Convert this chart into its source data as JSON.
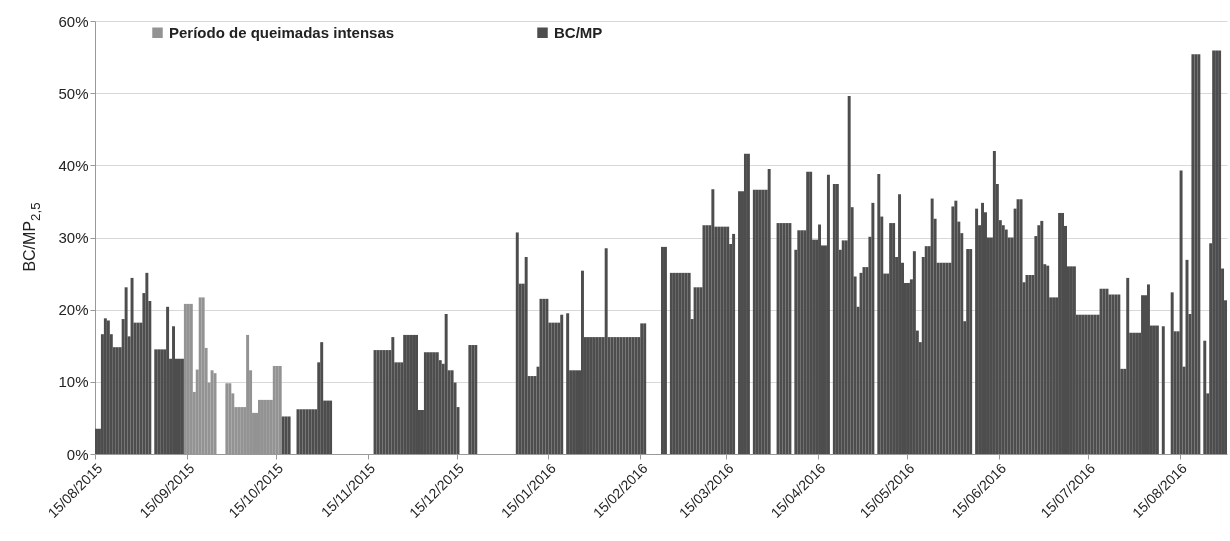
{
  "chart_data": {
    "type": "bar",
    "ylabel": "BC/MP$_{2,5}$",
    "legend": "top left",
    "grid": "y",
    "xlim": [
      "2015-08-15",
      "2016-08-31"
    ],
    "xticks": [
      {
        "value": "2015-08-15",
        "label": "15/08/2015"
      },
      {
        "value": "2015-09-15",
        "label": "15/09/2015"
      },
      {
        "value": "2015-10-15",
        "label": "15/10/2015"
      },
      {
        "value": "2015-11-15",
        "label": "15/11/2015"
      },
      {
        "value": "2015-12-15",
        "label": "15/12/2015"
      },
      {
        "value": "2016-01-15",
        "label": "15/01/2016"
      },
      {
        "value": "2016-02-15",
        "label": "15/02/2016"
      },
      {
        "value": "2016-03-15",
        "label": "15/03/2016"
      },
      {
        "value": "2016-04-15",
        "label": "15/04/2016"
      },
      {
        "value": "2016-05-15",
        "label": "15/05/2016"
      },
      {
        "value": "2016-06-15",
        "label": "15/06/2016"
      },
      {
        "value": "2016-07-15",
        "label": "15/07/2016"
      },
      {
        "value": "2016-08-15",
        "label": "15/08/2016"
      }
    ],
    "ylim": [
      0,
      60
    ],
    "yticks": [
      {
        "value": 0,
        "label": "0%"
      },
      {
        "value": 10,
        "label": "10%"
      },
      {
        "value": 20,
        "label": "20%"
      },
      {
        "value": 30,
        "label": "30%"
      },
      {
        "value": 40,
        "label": "40%"
      },
      {
        "value": 50,
        "label": "50%"
      },
      {
        "value": 60,
        "label": "60%"
      }
    ],
    "series": [
      {
        "name": "Período de queimadas intensas",
        "color": "#939393",
        "x": [
          "2015-09-14",
          "2015-09-15",
          "2015-09-16",
          "2015-09-17",
          "2015-09-18",
          "2015-09-19",
          "2015-09-20",
          "2015-09-21",
          "2015-09-22",
          "2015-09-23",
          "2015-09-24",
          "2015-09-28",
          "2015-09-29",
          "2015-09-30",
          "2015-10-01",
          "2015-10-02",
          "2015-10-03",
          "2015-10-04",
          "2015-10-05",
          "2015-10-06",
          "2015-10-07",
          "2015-10-08",
          "2015-10-09",
          "2015-10-10",
          "2015-10-11",
          "2015-10-12",
          "2015-10-13",
          "2015-10-14",
          "2015-10-15",
          "2015-10-16"
        ],
        "values": [
          20.8,
          20.8,
          20.8,
          8.6,
          11.7,
          21.7,
          21.7,
          14.7,
          9.9,
          11.6,
          11.2,
          9.8,
          9.8,
          8.4,
          6.5,
          6.5,
          6.5,
          6.5,
          16.5,
          11.6,
          5.7,
          5.7,
          7.5,
          7.5,
          7.5,
          7.5,
          7.5,
          12.2,
          12.2,
          12.2
        ]
      },
      {
        "name": "BC/MP",
        "color": "#4d4d4d",
        "x": [
          "2015-08-15",
          "2015-08-16",
          "2015-08-17",
          "2015-08-18",
          "2015-08-19",
          "2015-08-20",
          "2015-08-21",
          "2015-08-22",
          "2015-08-23",
          "2015-08-24",
          "2015-08-25",
          "2015-08-26",
          "2015-08-27",
          "2015-08-28",
          "2015-08-29",
          "2015-08-30",
          "2015-08-31",
          "2015-09-01",
          "2015-09-02",
          "2015-09-04",
          "2015-09-05",
          "2015-09-06",
          "2015-09-07",
          "2015-09-08",
          "2015-09-09",
          "2015-09-10",
          "2015-09-11",
          "2015-09-12",
          "2015-09-13",
          "2015-10-17",
          "2015-10-18",
          "2015-10-19",
          "2015-10-22",
          "2015-10-23",
          "2015-10-24",
          "2015-10-25",
          "2015-10-26",
          "2015-10-27",
          "2015-10-28",
          "2015-10-29",
          "2015-10-30",
          "2015-10-31",
          "2015-11-01",
          "2015-11-02",
          "2015-11-17",
          "2015-11-18",
          "2015-11-19",
          "2015-11-20",
          "2015-11-21",
          "2015-11-22",
          "2015-11-23",
          "2015-11-24",
          "2015-11-25",
          "2015-11-26",
          "2015-11-27",
          "2015-11-28",
          "2015-11-29",
          "2015-11-30",
          "2015-12-01",
          "2015-12-02",
          "2015-12-03",
          "2015-12-04",
          "2015-12-05",
          "2015-12-06",
          "2015-12-07",
          "2015-12-08",
          "2015-12-09",
          "2015-12-10",
          "2015-12-11",
          "2015-12-12",
          "2015-12-13",
          "2015-12-14",
          "2015-12-15",
          "2015-12-19",
          "2015-12-20",
          "2015-12-21",
          "2016-01-04",
          "2016-01-05",
          "2016-01-06",
          "2016-01-07",
          "2016-01-08",
          "2016-01-09",
          "2016-01-10",
          "2016-01-11",
          "2016-01-12",
          "2016-01-13",
          "2016-01-14",
          "2016-01-15",
          "2016-01-16",
          "2016-01-17",
          "2016-01-18",
          "2016-01-19",
          "2016-01-21",
          "2016-01-22",
          "2016-01-23",
          "2016-01-24",
          "2016-01-25",
          "2016-01-26",
          "2016-01-27",
          "2016-01-28",
          "2016-01-29",
          "2016-01-30",
          "2016-01-31",
          "2016-02-01",
          "2016-02-02",
          "2016-02-03",
          "2016-02-04",
          "2016-02-05",
          "2016-02-06",
          "2016-02-07",
          "2016-02-08",
          "2016-02-09",
          "2016-02-10",
          "2016-02-11",
          "2016-02-12",
          "2016-02-13",
          "2016-02-14",
          "2016-02-15",
          "2016-02-16",
          "2016-02-22",
          "2016-02-23",
          "2016-02-25",
          "2016-02-26",
          "2016-02-27",
          "2016-02-28",
          "2016-02-29",
          "2016-03-01",
          "2016-03-02",
          "2016-03-03",
          "2016-03-04",
          "2016-03-05",
          "2016-03-06",
          "2016-03-07",
          "2016-03-08",
          "2016-03-09",
          "2016-03-10",
          "2016-03-11",
          "2016-03-12",
          "2016-03-13",
          "2016-03-14",
          "2016-03-15",
          "2016-03-16",
          "2016-03-17",
          "2016-03-19",
          "2016-03-20",
          "2016-03-21",
          "2016-03-22",
          "2016-03-24",
          "2016-03-25",
          "2016-03-26",
          "2016-03-27",
          "2016-03-28",
          "2016-03-29",
          "2016-04-01",
          "2016-04-02",
          "2016-04-03",
          "2016-04-04",
          "2016-04-05",
          "2016-04-07",
          "2016-04-08",
          "2016-04-09",
          "2016-04-10",
          "2016-04-11",
          "2016-04-12",
          "2016-04-13",
          "2016-04-14",
          "2016-04-15",
          "2016-04-16",
          "2016-04-17",
          "2016-04-18",
          "2016-04-20",
          "2016-04-21",
          "2016-04-22",
          "2016-04-23",
          "2016-04-24",
          "2016-04-25",
          "2016-04-26",
          "2016-04-27",
          "2016-04-28",
          "2016-04-29",
          "2016-04-30",
          "2016-05-01",
          "2016-05-02",
          "2016-05-03",
          "2016-05-05",
          "2016-05-06",
          "2016-05-07",
          "2016-05-08",
          "2016-05-09",
          "2016-05-10",
          "2016-05-11",
          "2016-05-12",
          "2016-05-13",
          "2016-05-14",
          "2016-05-15",
          "2016-05-16",
          "2016-05-17",
          "2016-05-18",
          "2016-05-19",
          "2016-05-20",
          "2016-05-21",
          "2016-05-22",
          "2016-05-23",
          "2016-05-24",
          "2016-05-25",
          "2016-05-26",
          "2016-05-27",
          "2016-05-28",
          "2016-05-29",
          "2016-05-30",
          "2016-05-31",
          "2016-06-01",
          "2016-06-02",
          "2016-06-03",
          "2016-06-04",
          "2016-06-05",
          "2016-06-07",
          "2016-06-08",
          "2016-06-09",
          "2016-06-10",
          "2016-06-11",
          "2016-06-12",
          "2016-06-13",
          "2016-06-14",
          "2016-06-15",
          "2016-06-16",
          "2016-06-17",
          "2016-06-18",
          "2016-06-19",
          "2016-06-20",
          "2016-06-21",
          "2016-06-22",
          "2016-06-23",
          "2016-06-24",
          "2016-06-25",
          "2016-06-26",
          "2016-06-27",
          "2016-06-28",
          "2016-06-29",
          "2016-06-30",
          "2016-07-01",
          "2016-07-02",
          "2016-07-03",
          "2016-07-04",
          "2016-07-05",
          "2016-07-06",
          "2016-07-07",
          "2016-07-08",
          "2016-07-09",
          "2016-07-10",
          "2016-07-11",
          "2016-07-12",
          "2016-07-13",
          "2016-07-14",
          "2016-07-15",
          "2016-07-16",
          "2016-07-17",
          "2016-07-18",
          "2016-07-19",
          "2016-07-20",
          "2016-07-21",
          "2016-07-22",
          "2016-07-23",
          "2016-07-24",
          "2016-07-25",
          "2016-07-26",
          "2016-07-27",
          "2016-07-28",
          "2016-07-29",
          "2016-07-30",
          "2016-07-31",
          "2016-08-01",
          "2016-08-02",
          "2016-08-03",
          "2016-08-04",
          "2016-08-05",
          "2016-08-06",
          "2016-08-07",
          "2016-08-09",
          "2016-08-12",
          "2016-08-13",
          "2016-08-14",
          "2016-08-15",
          "2016-08-16",
          "2016-08-17",
          "2016-08-18",
          "2016-08-19",
          "2016-08-20",
          "2016-08-21",
          "2016-08-23",
          "2016-08-24",
          "2016-08-25",
          "2016-08-26",
          "2016-08-27",
          "2016-08-28",
          "2016-08-29",
          "2016-08-30"
        ],
        "values": [
          3.5,
          3.5,
          16.6,
          18.8,
          18.5,
          16.6,
          14.8,
          14.8,
          14.8,
          18.7,
          23.1,
          16.3,
          24.4,
          18.2,
          18.2,
          18.2,
          22.3,
          25.1,
          21.2,
          14.5,
          14.5,
          14.5,
          14.5,
          20.4,
          13.2,
          17.7,
          13.2,
          13.2,
          13.2,
          5.2,
          5.2,
          5.2,
          6.2,
          6.2,
          6.2,
          6.2,
          6.2,
          6.2,
          6.2,
          12.7,
          15.5,
          7.4,
          7.4,
          7.4,
          14.4,
          14.4,
          14.4,
          14.4,
          14.4,
          14.4,
          16.2,
          12.7,
          12.7,
          12.7,
          16.5,
          16.5,
          16.5,
          16.5,
          16.5,
          6.1,
          6.1,
          14.1,
          14.1,
          14.1,
          14.1,
          14.1,
          13.0,
          12.5,
          19.4,
          11.6,
          11.6,
          9.9,
          6.5,
          15.1,
          15.1,
          15.1,
          30.7,
          23.6,
          23.6,
          27.3,
          10.8,
          10.8,
          10.8,
          12.1,
          21.5,
          21.5,
          21.5,
          18.2,
          18.2,
          18.2,
          18.2,
          19.3,
          19.5,
          11.6,
          11.6,
          11.6,
          11.6,
          25.4,
          16.2,
          16.2,
          16.2,
          16.2,
          16.2,
          16.2,
          16.2,
          28.5,
          16.2,
          16.2,
          16.2,
          16.2,
          16.2,
          16.2,
          16.2,
          16.2,
          16.2,
          16.2,
          16.2,
          18.1,
          18.1,
          28.7,
          28.7,
          25.1,
          25.1,
          25.1,
          25.1,
          25.1,
          25.1,
          25.1,
          18.7,
          23.1,
          23.1,
          23.1,
          31.7,
          31.7,
          31.7,
          36.7,
          31.5,
          31.5,
          31.5,
          31.5,
          31.5,
          29.1,
          30.5,
          36.4,
          36.4,
          41.6,
          41.6,
          36.6,
          36.6,
          36.6,
          36.6,
          36.6,
          39.5,
          32.0,
          32.0,
          32.0,
          32.0,
          32.0,
          28.3,
          31.0,
          31.0,
          31.0,
          39.1,
          39.1,
          29.7,
          29.7,
          31.8,
          28.9,
          28.9,
          38.7,
          37.4,
          37.4,
          28.3,
          29.6,
          29.6,
          49.6,
          34.2,
          24.6,
          20.4,
          25.1,
          25.9,
          25.9,
          30.1,
          34.8,
          38.8,
          32.9,
          25.0,
          25.0,
          32.0,
          32.0,
          27.3,
          36.0,
          26.5,
          23.7,
          23.7,
          24.2,
          28.1,
          17.1,
          15.5,
          27.3,
          28.8,
          28.8,
          35.4,
          32.6,
          26.5,
          26.5,
          26.5,
          26.5,
          26.5,
          34.3,
          35.1,
          32.2,
          30.6,
          18.4,
          28.4,
          28.4,
          34.0,
          31.7,
          34.8,
          33.5,
          30.0,
          30.0,
          42.0,
          37.4,
          32.4,
          31.7,
          31.1,
          30.0,
          30.0,
          34.0,
          35.3,
          35.3,
          23.8,
          24.8,
          24.8,
          24.8,
          30.2,
          31.7,
          32.3,
          26.3,
          26.1,
          21.7,
          21.7,
          21.7,
          33.4,
          33.4,
          31.6,
          26.0,
          26.0,
          26.0,
          19.3,
          19.3,
          19.3,
          19.3,
          19.3,
          19.3,
          19.3,
          19.3,
          22.9,
          22.9,
          22.9,
          22.1,
          22.1,
          22.1,
          22.1,
          11.8,
          11.8,
          24.4,
          16.8,
          16.8,
          16.8,
          16.8,
          22.0,
          22.0,
          23.5,
          17.8,
          17.8,
          17.8,
          17.7,
          22.4,
          17.0,
          17.0,
          39.3,
          12.1,
          26.9,
          19.4,
          55.4,
          55.4,
          55.4,
          15.7,
          8.4,
          29.2,
          55.9,
          55.9,
          55.9,
          25.7,
          21.3
        ]
      }
    ]
  }
}
